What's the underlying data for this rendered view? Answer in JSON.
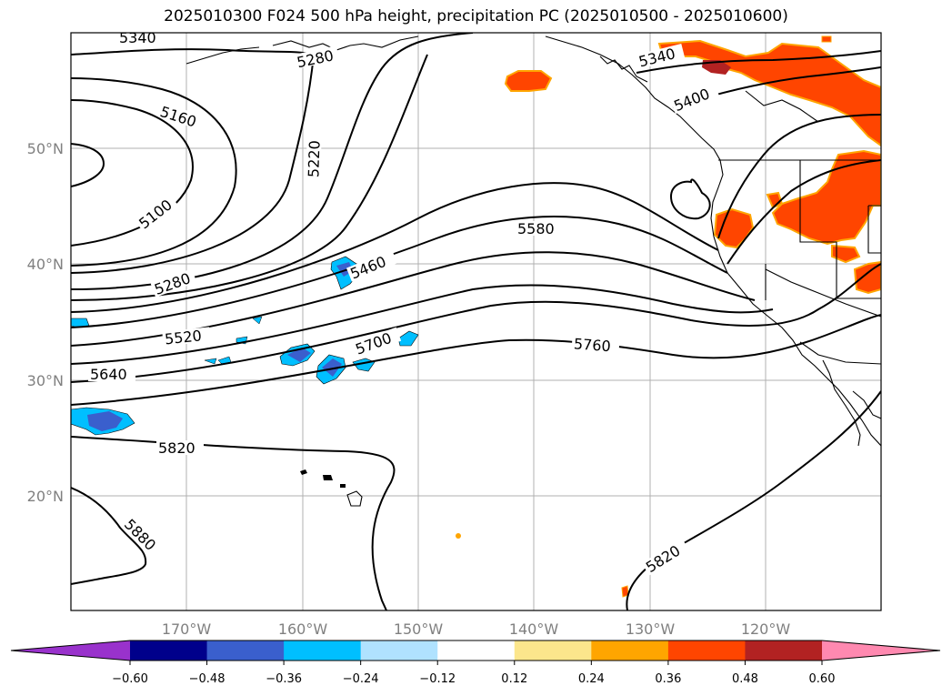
{
  "title": "2025010300 F024 500 hPa height, precipitation PC (2025010500 - 2025010600)",
  "lat_labels": [
    "50°N",
    "40°N",
    "30°N",
    "20°N"
  ],
  "lon_labels": [
    "170°W",
    "160°W",
    "150°W",
    "140°W",
    "130°W",
    "120°W"
  ],
  "contour_labels": [
    "5340",
    "5280",
    "5160",
    "5220",
    "5100",
    "5280",
    "5460",
    "5520",
    "5580",
    "5640",
    "5700",
    "5760",
    "5820",
    "5880",
    "5820",
    "5340",
    "5400"
  ],
  "colorbar": {
    "ticks": [
      "−0.60",
      "−0.48",
      "−0.36",
      "−0.24",
      "−0.12",
      "0.12",
      "0.24",
      "0.36",
      "0.48",
      "0.60"
    ],
    "colors": [
      "#9932cc",
      "#00008b",
      "#3a5fcd",
      "#00bfff",
      "#b0e2ff",
      "#ffffff",
      "#fce68c",
      "#ffa500",
      "#ff4500",
      "#b22222",
      "#ff89b0"
    ]
  }
}
